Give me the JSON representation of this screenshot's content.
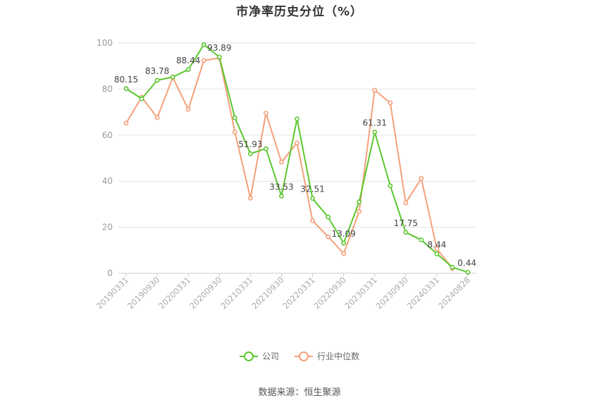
{
  "chart_data": {
    "type": "line",
    "title": "市净率历史分位（%）",
    "x": [
      "20190331",
      "20190630",
      "20190930",
      "20191231",
      "20200331",
      "20200630",
      "20200930",
      "20201231",
      "20210331",
      "20210630",
      "20210930",
      "20211231",
      "20220331",
      "20220630",
      "20220930",
      "20221231",
      "20230331",
      "20230630",
      "20230930",
      "20231231",
      "20240331",
      "20240630",
      "20240828"
    ],
    "x_tick_labels": [
      "20190331",
      "20190930",
      "20200331",
      "20200930",
      "20210331",
      "20210930",
      "20220331",
      "20220930",
      "20230331",
      "20230930",
      "20240331",
      "20240828"
    ],
    "ylim": [
      0,
      100
    ],
    "yticks": [
      "0",
      "20",
      "40",
      "60",
      "80",
      "100"
    ],
    "grid": true,
    "legend_position": "bottom",
    "series": [
      {
        "name": "公司",
        "color": "#5cc72f",
        "values": [
          80.15,
          75.8,
          83.78,
          85.2,
          88.44,
          99.3,
          93.89,
          67.5,
          51.93,
          54.1,
          33.53,
          67.0,
          32.51,
          24.4,
          13.09,
          31.0,
          61.31,
          38.0,
          17.75,
          14.5,
          8.44,
          2.6,
          0.44
        ],
        "labels": [
          "80.15",
          "",
          "83.78",
          "",
          "88.44",
          "",
          "93.89",
          "",
          "51.93",
          "",
          "33.53",
          "",
          "32.51",
          "",
          "13.09",
          "",
          "61.31",
          "",
          "17.75",
          "",
          "8.44",
          "",
          "0.44"
        ]
      },
      {
        "name": "行业中位数",
        "color": "#f5a07a",
        "values": [
          65.2,
          76.5,
          67.6,
          85.0,
          71.2,
          92.4,
          93.5,
          61.3,
          32.6,
          69.5,
          48.3,
          56.6,
          22.9,
          15.9,
          8.6,
          26.8,
          79.5,
          74.0,
          30.6,
          41.2,
          10.6,
          2.1,
          null
        ],
        "labels": []
      }
    ]
  },
  "footer": {
    "source": "数据来源：恒生聚源"
  }
}
